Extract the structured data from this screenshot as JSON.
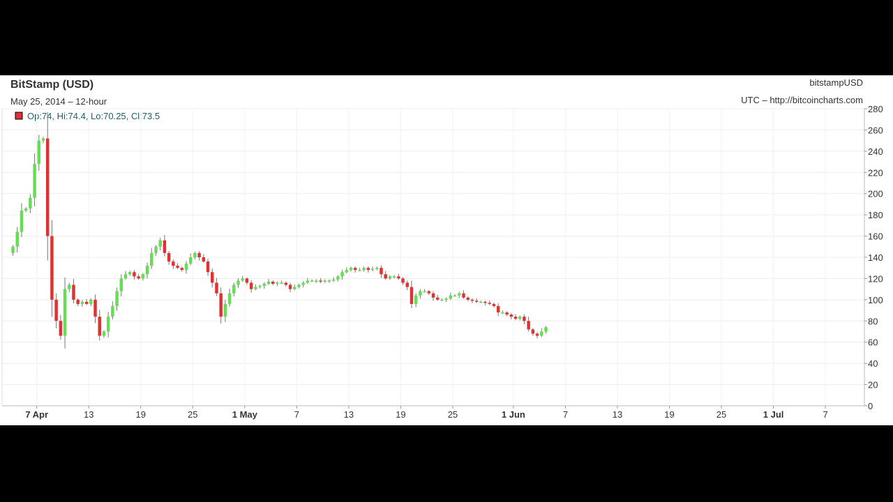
{
  "chart_data": {
    "type": "candlestick",
    "title": "BitStamp (USD)",
    "subtitle": "May 25, 2014 – 12-hour",
    "symbol": "bitstampUSD",
    "source": "UTC – http://bitcoincharts.com",
    "legend": {
      "text": "Op:74, Hi:74.4, Lo:70.25, Cl:73.5",
      "up_color": "#66dd55",
      "down_color": "#dd3333"
    },
    "ylim": [
      0,
      280
    ],
    "y_ticks": [
      0,
      20,
      40,
      60,
      80,
      100,
      120,
      140,
      160,
      180,
      200,
      220,
      240,
      260,
      280
    ],
    "x_domain": [
      3,
      102.5
    ],
    "x_ticks": [
      {
        "day": 7,
        "label": "7 Apr",
        "bold": true
      },
      {
        "day": 13,
        "label": "13",
        "bold": false
      },
      {
        "day": 19,
        "label": "19",
        "bold": false
      },
      {
        "day": 25,
        "label": "25",
        "bold": false
      },
      {
        "day": 31,
        "label": "1 May",
        "bold": true
      },
      {
        "day": 37,
        "label": "7",
        "bold": false
      },
      {
        "day": 43,
        "label": "13",
        "bold": false
      },
      {
        "day": 49,
        "label": "19",
        "bold": false
      },
      {
        "day": 55,
        "label": "25",
        "bold": false
      },
      {
        "day": 62,
        "label": "1 Jun",
        "bold": true
      },
      {
        "day": 68,
        "label": "7",
        "bold": false
      },
      {
        "day": 74,
        "label": "13",
        "bold": false
      },
      {
        "day": 80,
        "label": "19",
        "bold": false
      },
      {
        "day": 86,
        "label": "25",
        "bold": false
      },
      {
        "day": 92,
        "label": "1 Jul",
        "bold": true
      },
      {
        "day": 98,
        "label": "7",
        "bold": false
      }
    ],
    "candles": {
      "start_day": 4.25,
      "step": 0.5,
      "closes": [
        150,
        164,
        184,
        186,
        196,
        228,
        250,
        252,
        160,
        100,
        80,
        66,
        110,
        114,
        100,
        96,
        98,
        96,
        100,
        84,
        66,
        70,
        84,
        94,
        108,
        120,
        124,
        126,
        122,
        120,
        124,
        132,
        144,
        150,
        156,
        144,
        136,
        132,
        130,
        128,
        134,
        140,
        144,
        140,
        136,
        126,
        116,
        106,
        84,
        96,
        106,
        114,
        118,
        120,
        116,
        110,
        112,
        113,
        115,
        117,
        115,
        116,
        116,
        114,
        110,
        112,
        114,
        116,
        118,
        118,
        118,
        117,
        118,
        118,
        119,
        122,
        126,
        128,
        130,
        128,
        128,
        130,
        128,
        129,
        130,
        124,
        120,
        122,
        122,
        120,
        116,
        112,
        96,
        104,
        108,
        108,
        106,
        102,
        100,
        100,
        101,
        104,
        104,
        106,
        102,
        100,
        99,
        98,
        98,
        97,
        96,
        94,
        88,
        88,
        86,
        84,
        82,
        84,
        80,
        72,
        68,
        66,
        70,
        74
      ]
    }
  }
}
